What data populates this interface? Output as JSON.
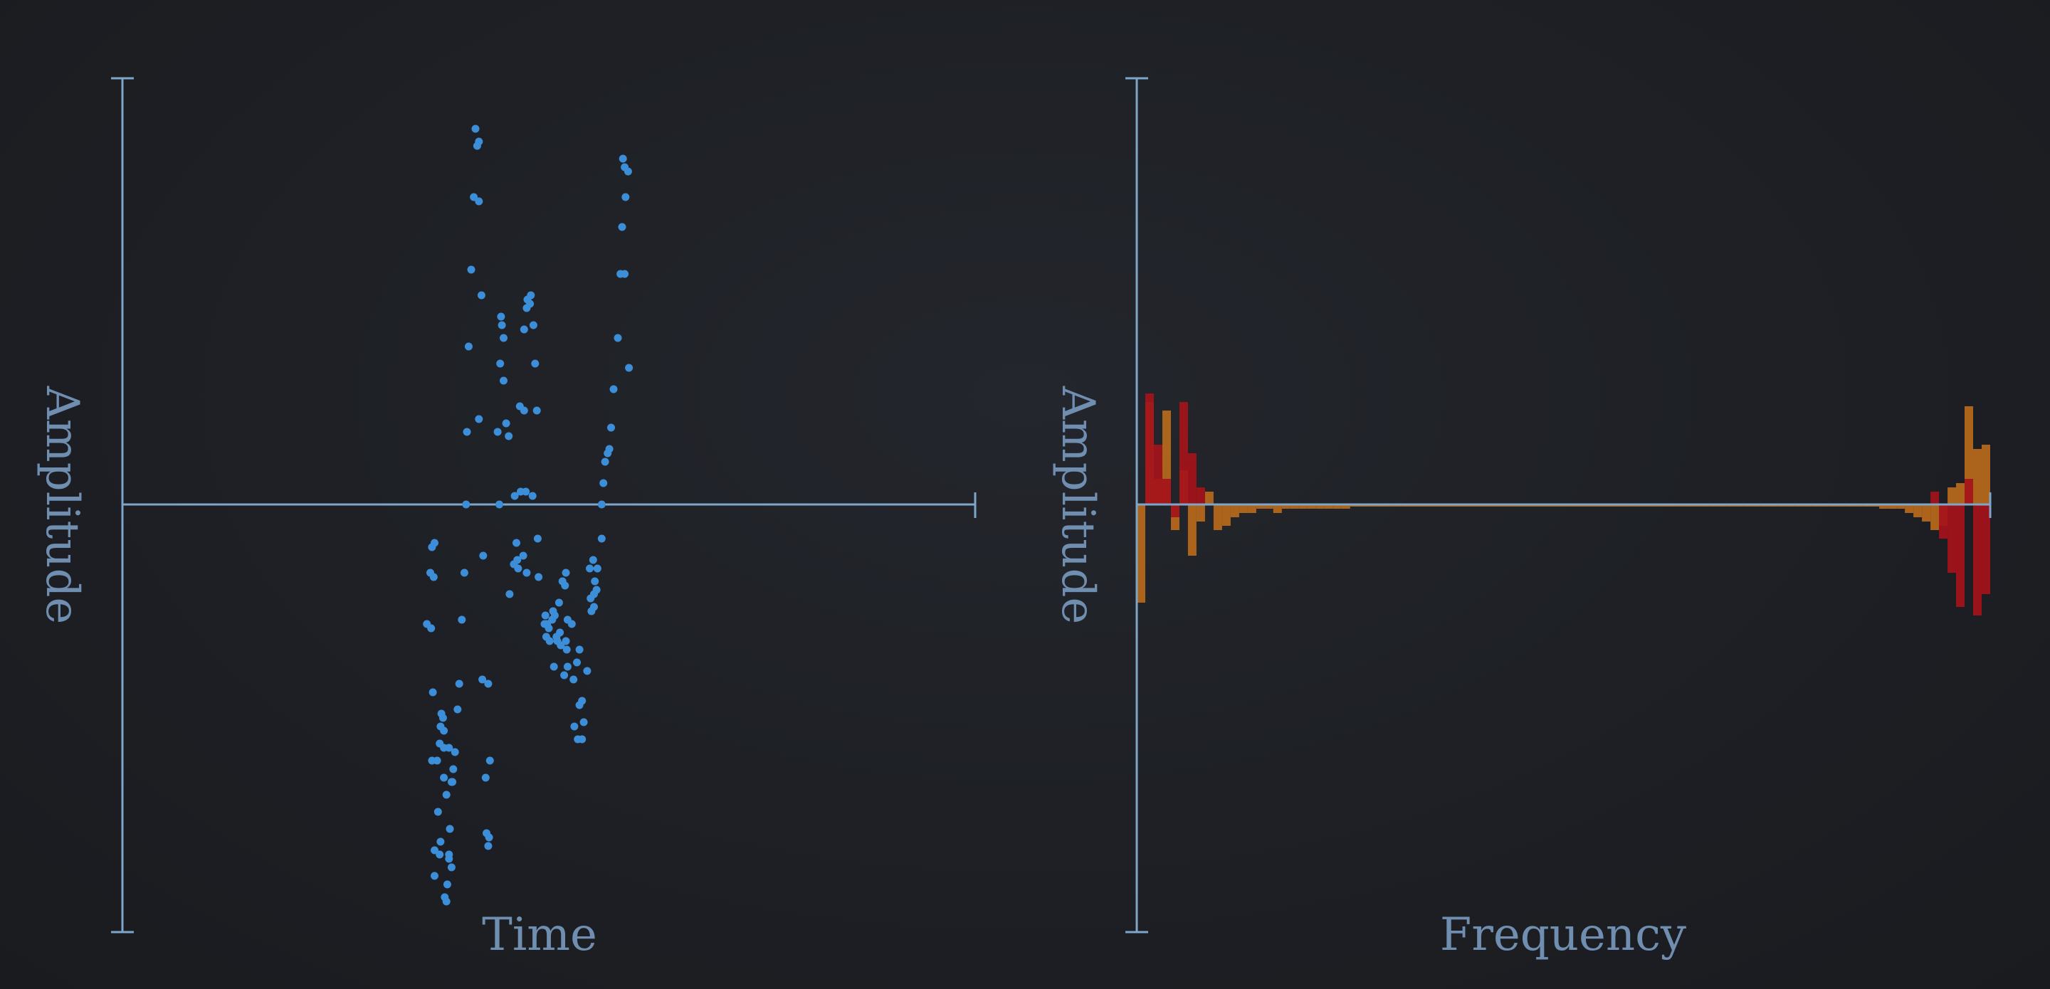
{
  "chart_data": [
    {
      "type": "scatter",
      "xlabel": "Time",
      "ylabel": "Amplitude",
      "ylim": [
        -1,
        1
      ],
      "x_ticks": "none",
      "y_ticks": "none",
      "colors": {
        "axis": "#7ea6c9",
        "label": "#6f8eb0",
        "points": "#3d8ed8"
      },
      "points": [
        [
          0.414,
          0.88
        ],
        [
          0.416,
          0.84
        ],
        [
          0.418,
          0.85
        ],
        [
          0.412,
          0.72
        ],
        [
          0.418,
          0.71
        ],
        [
          0.409,
          0.55
        ],
        [
          0.421,
          0.49
        ],
        [
          0.406,
          0.37
        ],
        [
          0.418,
          0.2
        ],
        [
          0.404,
          0.17
        ],
        [
          0.403,
          0.0
        ],
        [
          0.401,
          -0.16
        ],
        [
          0.398,
          -0.27
        ],
        [
          0.395,
          -0.42
        ],
        [
          0.393,
          -0.48
        ],
        [
          0.39,
          -0.58
        ],
        [
          0.387,
          -0.65
        ],
        [
          0.423,
          -0.12
        ],
        [
          0.422,
          -0.41
        ],
        [
          0.429,
          -0.42
        ],
        [
          0.426,
          -0.64
        ],
        [
          0.431,
          -0.6
        ],
        [
          0.427,
          -0.77
        ],
        [
          0.43,
          -0.78
        ],
        [
          0.429,
          -0.8
        ],
        [
          0.363,
          -0.1
        ],
        [
          0.366,
          -0.09
        ],
        [
          0.361,
          -0.16
        ],
        [
          0.365,
          -0.17
        ],
        [
          0.357,
          -0.28
        ],
        [
          0.362,
          -0.29
        ],
        [
          0.364,
          -0.44
        ],
        [
          0.374,
          -0.49
        ],
        [
          0.376,
          -0.5
        ],
        [
          0.373,
          -0.52
        ],
        [
          0.377,
          -0.53
        ],
        [
          0.372,
          -0.56
        ],
        [
          0.377,
          -0.57
        ],
        [
          0.363,
          -0.6
        ],
        [
          0.369,
          -0.6
        ],
        [
          0.383,
          -0.57
        ],
        [
          0.377,
          -0.64
        ],
        [
          0.37,
          -0.72
        ],
        [
          0.386,
          -0.65
        ],
        [
          0.388,
          -0.62
        ],
        [
          0.38,
          -0.68
        ],
        [
          0.366,
          -0.81
        ],
        [
          0.372,
          -0.82
        ],
        [
          0.373,
          -0.79
        ],
        [
          0.383,
          -0.82
        ],
        [
          0.366,
          -0.87
        ],
        [
          0.384,
          -0.76
        ],
        [
          0.381,
          -0.89
        ],
        [
          0.386,
          -0.85
        ],
        [
          0.378,
          -0.92
        ],
        [
          0.38,
          -0.93
        ],
        [
          0.383,
          -0.83
        ],
        [
          0.444,
          0.44
        ],
        [
          0.445,
          0.42
        ],
        [
          0.447,
          0.39
        ],
        [
          0.443,
          0.33
        ],
        [
          0.447,
          0.29
        ],
        [
          0.45,
          0.19
        ],
        [
          0.44,
          0.17
        ],
        [
          0.453,
          0.16
        ],
        [
          0.466,
          0.23
        ],
        [
          0.474,
          0.46
        ],
        [
          0.478,
          0.47
        ],
        [
          0.479,
          0.49
        ],
        [
          0.475,
          0.48
        ],
        [
          0.482,
          0.42
        ],
        [
          0.471,
          0.41
        ],
        [
          0.484,
          0.33
        ],
        [
          0.471,
          0.22
        ],
        [
          0.486,
          0.22
        ],
        [
          0.46,
          0.02
        ],
        [
          0.467,
          0.03
        ],
        [
          0.473,
          0.03
        ],
        [
          0.442,
          0.0
        ],
        [
          0.481,
          0.02
        ],
        [
          0.462,
          -0.09
        ],
        [
          0.463,
          -0.13
        ],
        [
          0.459,
          -0.14
        ],
        [
          0.464,
          -0.15
        ],
        [
          0.454,
          -0.21
        ],
        [
          0.47,
          -0.12
        ],
        [
          0.474,
          -0.16
        ],
        [
          0.487,
          -0.08
        ],
        [
          0.488,
          -0.17
        ],
        [
          0.496,
          -0.26
        ],
        [
          0.498,
          -0.28
        ],
        [
          0.5,
          -0.29
        ],
        [
          0.504,
          -0.27
        ],
        [
          0.495,
          -0.28
        ],
        [
          0.507,
          -0.26
        ],
        [
          0.497,
          -0.31
        ],
        [
          0.501,
          -0.32
        ],
        [
          0.505,
          -0.25
        ],
        [
          0.509,
          -0.31
        ],
        [
          0.513,
          -0.3
        ],
        [
          0.512,
          -0.23
        ],
        [
          0.516,
          -0.18
        ],
        [
          0.519,
          -0.19
        ],
        [
          0.52,
          -0.16
        ],
        [
          0.522,
          -0.27
        ],
        [
          0.51,
          -0.32
        ],
        [
          0.514,
          -0.33
        ],
        [
          0.52,
          -0.32
        ],
        [
          0.521,
          -0.34
        ],
        [
          0.506,
          -0.38
        ],
        [
          0.518,
          -0.4
        ],
        [
          0.522,
          -0.38
        ],
        [
          0.527,
          -0.28
        ],
        [
          0.533,
          -0.37
        ],
        [
          0.536,
          -0.34
        ],
        [
          0.529,
          -0.41
        ],
        [
          0.536,
          -0.47
        ],
        [
          0.539,
          -0.46
        ],
        [
          0.53,
          -0.52
        ],
        [
          0.541,
          -0.51
        ],
        [
          0.539,
          -0.55
        ],
        [
          0.534,
          -0.55
        ],
        [
          0.545,
          -0.39
        ],
        [
          0.55,
          -0.25
        ],
        [
          0.553,
          -0.21
        ],
        [
          0.554,
          -0.18
        ],
        [
          0.548,
          -0.15
        ],
        [
          0.552,
          -0.13
        ],
        [
          0.549,
          -0.22
        ],
        [
          0.557,
          -0.15
        ],
        [
          0.556,
          -0.2
        ],
        [
          0.553,
          -0.24
        ],
        [
          0.562,
          -0.08
        ],
        [
          0.562,
          0.0
        ],
        [
          0.564,
          0.05
        ],
        [
          0.566,
          0.1
        ],
        [
          0.569,
          0.12
        ],
        [
          0.571,
          0.13
        ],
        [
          0.573,
          0.18
        ],
        [
          0.576,
          0.27
        ],
        [
          0.584,
          0.54
        ],
        [
          0.581,
          0.39
        ],
        [
          0.589,
          0.54
        ],
        [
          0.594,
          0.32
        ],
        [
          0.586,
          0.65
        ],
        [
          0.59,
          0.72
        ],
        [
          0.593,
          0.78
        ],
        [
          0.589,
          0.79
        ],
        [
          0.587,
          0.81
        ]
      ]
    },
    {
      "type": "bar",
      "xlabel": "Frequency",
      "ylabel": "Amplitude",
      "ylim": [
        -1,
        1
      ],
      "x_ticks": "none",
      "y_ticks": "none",
      "colors": {
        "axis": "#7ea6c9",
        "label": "#6f8eb0",
        "bar_a": "#b96a1c",
        "bar_b": "#a5121a"
      },
      "bins": 100,
      "series": [
        {
          "values": [
            -0.23,
            0.24,
            0.06,
            0.22,
            -0.06,
            0.08,
            -0.12,
            -0.04,
            0.03,
            -0.06,
            -0.05,
            -0.03,
            -0.02,
            -0.02,
            -0.01,
            -0.01,
            -0.02,
            -0.01,
            -0.01,
            -0.01,
            -0.01,
            -0.01,
            -0.01,
            -0.01,
            -0.01,
            -0.005,
            -0.005,
            -0.005,
            -0.005,
            -0.005,
            -0.005,
            -0.005,
            -0.005,
            -0.005,
            -0.005,
            -0.005,
            -0.005,
            -0.005,
            -0.005,
            -0.005,
            -0.005,
            -0.005,
            -0.005,
            -0.005,
            -0.005,
            -0.005,
            -0.005,
            -0.005,
            -0.005,
            -0.005,
            -0.005,
            -0.005,
            -0.005,
            -0.005,
            -0.005,
            -0.005,
            -0.005,
            -0.005,
            -0.005,
            -0.005,
            -0.005,
            -0.005,
            -0.005,
            -0.005,
            -0.005,
            -0.005,
            -0.005,
            -0.005,
            -0.005,
            -0.005,
            -0.005,
            -0.005,
            -0.005,
            -0.005,
            -0.005,
            -0.005,
            -0.005,
            -0.005,
            -0.005,
            -0.005,
            -0.005,
            -0.005,
            -0.005,
            -0.005,
            -0.005,
            -0.005,
            -0.005,
            -0.01,
            -0.01,
            -0.01,
            -0.02,
            -0.03,
            -0.04,
            -0.06,
            -0.05,
            0.04,
            0.05,
            0.23,
            0.13,
            0.14
          ]
        },
        {
          "values": [
            0.0,
            0.26,
            0.14,
            0.06,
            -0.03,
            0.24,
            0.12,
            0.04,
            0.0,
            0.0,
            0.0,
            0.0,
            0.0,
            0.0,
            0.0,
            0.0,
            0.0,
            0.0,
            0.0,
            0.0,
            0.0,
            0.0,
            0.0,
            0.0,
            0.0,
            0.0,
            0.0,
            0.0,
            0.0,
            0.0,
            0.0,
            0.0,
            0.0,
            0.0,
            0.0,
            0.0,
            0.0,
            0.0,
            0.0,
            0.0,
            0.0,
            0.0,
            0.0,
            0.0,
            0.0,
            0.0,
            0.0,
            0.0,
            0.0,
            0.0,
            0.0,
            0.0,
            0.0,
            0.0,
            0.0,
            0.0,
            0.0,
            0.0,
            0.0,
            0.0,
            0.0,
            0.0,
            0.0,
            0.0,
            0.0,
            0.0,
            0.0,
            0.0,
            0.0,
            0.0,
            0.0,
            0.0,
            0.0,
            0.0,
            0.0,
            0.0,
            0.0,
            0.0,
            0.0,
            0.0,
            0.0,
            0.0,
            0.0,
            0.0,
            0.0,
            0.0,
            0.0,
            0.0,
            0.0,
            0.0,
            0.0,
            0.0,
            0.0,
            0.03,
            -0.08,
            -0.16,
            -0.24,
            0.06,
            -0.26,
            -0.21
          ]
        }
      ]
    }
  ]
}
